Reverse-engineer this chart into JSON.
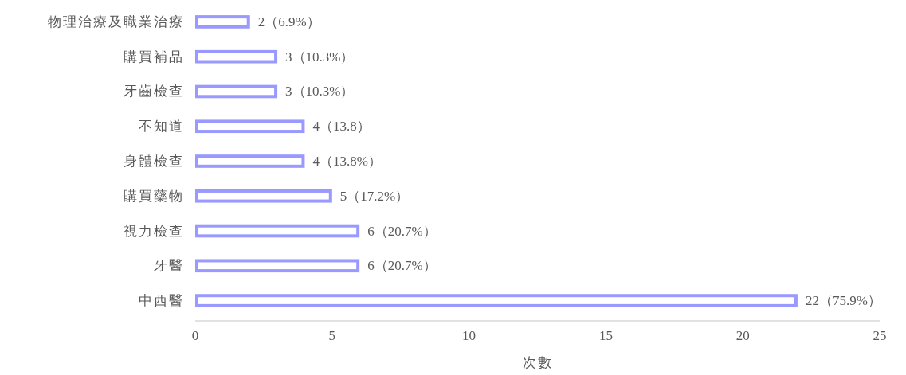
{
  "chart_data": {
    "type": "bar",
    "orientation": "horizontal",
    "xlabel": "次數",
    "categories": [
      "物理治療及職業治療",
      "購買補品",
      "牙齒檢查",
      "不知道",
      "身體檢查",
      "購買藥物",
      "視力檢查",
      "牙醫",
      "中西醫"
    ],
    "values": [
      2,
      3,
      3,
      4,
      4,
      5,
      6,
      6,
      22
    ],
    "value_labels": [
      "2（6.9%）",
      "3（10.3%）",
      "3（10.3%）",
      "4（13.8）",
      "4（13.8%）",
      "5（17.2%）",
      "6（20.7%）",
      "6（20.7%）",
      "22（75.9%）"
    ],
    "color": "#9999ff",
    "xlim": [
      0,
      25
    ],
    "xticks": [
      0,
      5,
      10,
      15,
      20,
      25
    ]
  }
}
